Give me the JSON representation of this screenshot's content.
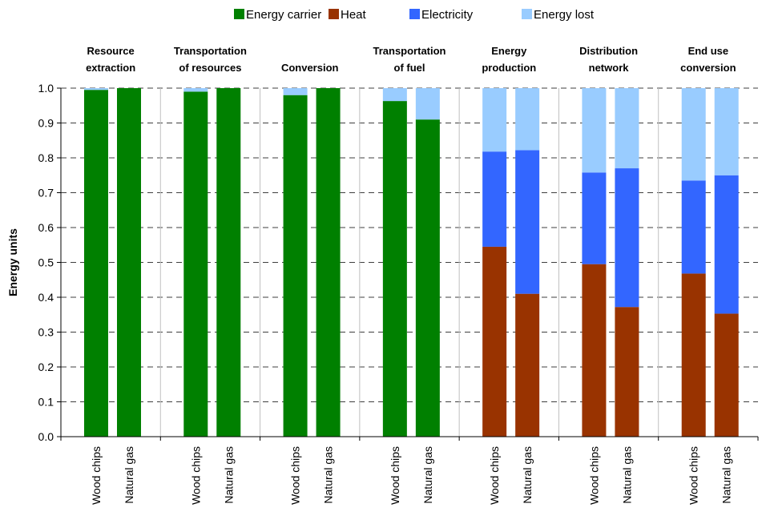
{
  "chart_data": {
    "type": "bar",
    "stacked": true,
    "ylabel": "Energy units",
    "ylim": [
      0,
      1.0
    ],
    "yticks": [
      "0.0",
      "0.1",
      "0.2",
      "0.3",
      "0.4",
      "0.5",
      "0.6",
      "0.7",
      "0.8",
      "0.9",
      "1.0"
    ],
    "grid": "horizontal dashed",
    "legend_position": "top",
    "groups": [
      {
        "title": [
          "Resource",
          "extraction"
        ],
        "categories": [
          "Wood chips",
          "Natural gas"
        ]
      },
      {
        "title": [
          "Transportation",
          "of resources"
        ],
        "categories": [
          "Wood chips",
          "Natural gas"
        ]
      },
      {
        "title": [
          "Conversion"
        ],
        "categories": [
          "Wood chips",
          "Natural gas"
        ]
      },
      {
        "title": [
          "Transportation",
          "of fuel"
        ],
        "categories": [
          "Wood chips",
          "Natural gas"
        ]
      },
      {
        "title": [
          "Energy",
          "production"
        ],
        "categories": [
          "Wood chips",
          "Natural gas"
        ]
      },
      {
        "title": [
          "Distribution",
          "network"
        ],
        "categories": [
          "Wood chips",
          "Natural gas"
        ]
      },
      {
        "title": [
          "End use",
          "conversion"
        ],
        "categories": [
          "Wood chips",
          "Natural gas"
        ]
      }
    ],
    "series": [
      {
        "name": "Energy carrier",
        "color": "#008000",
        "values": [
          0.995,
          1.0,
          0.99,
          1.0,
          0.98,
          1.0,
          0.963,
          0.91,
          0,
          0,
          0,
          0,
          0,
          0
        ]
      },
      {
        "name": "Heat",
        "color": "#993300",
        "values": [
          0,
          0,
          0,
          0,
          0,
          0,
          0,
          0,
          0.545,
          0.41,
          0.495,
          0.372,
          0.468,
          0.353
        ]
      },
      {
        "name": "Electricity",
        "color": "#3366FF",
        "values": [
          0,
          0,
          0,
          0,
          0,
          0,
          0,
          0,
          0.273,
          0.412,
          0.263,
          0.398,
          0.267,
          0.397
        ]
      },
      {
        "name": "Energy lost",
        "color": "#99CCFF",
        "values": [
          0.005,
          0,
          0.01,
          0,
          0.02,
          0,
          0.037,
          0.09,
          0.182,
          0.178,
          0.242,
          0.23,
          0.265,
          0.25
        ]
      }
    ]
  }
}
